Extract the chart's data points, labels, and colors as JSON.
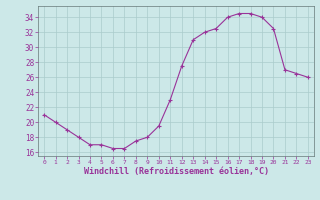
{
  "x": [
    0,
    1,
    2,
    3,
    4,
    5,
    6,
    7,
    8,
    9,
    10,
    11,
    12,
    13,
    14,
    15,
    16,
    17,
    18,
    19,
    20,
    21,
    22,
    23
  ],
  "y": [
    21,
    20,
    19,
    18,
    17,
    17,
    16.5,
    16.5,
    17.5,
    18,
    19.5,
    23,
    27.5,
    31,
    32,
    32.5,
    34,
    34.5,
    34.5,
    34,
    32.5,
    27,
    26.5,
    26
  ],
  "line_color": "#993399",
  "marker": "+",
  "marker_size": 3,
  "bg_color": "#cce8e8",
  "grid_color": "#aacccc",
  "tick_color": "#993399",
  "xlabel": "Windchill (Refroidissement éolien,°C)",
  "xlabel_color": "#993399",
  "xticks": [
    0,
    1,
    2,
    3,
    4,
    5,
    6,
    7,
    8,
    9,
    10,
    11,
    12,
    13,
    14,
    15,
    16,
    17,
    18,
    19,
    20,
    21,
    22,
    23
  ],
  "yticks": [
    16,
    18,
    20,
    22,
    24,
    26,
    28,
    30,
    32,
    34
  ],
  "ylim": [
    15.5,
    35.5
  ],
  "xlim": [
    -0.5,
    23.5
  ]
}
